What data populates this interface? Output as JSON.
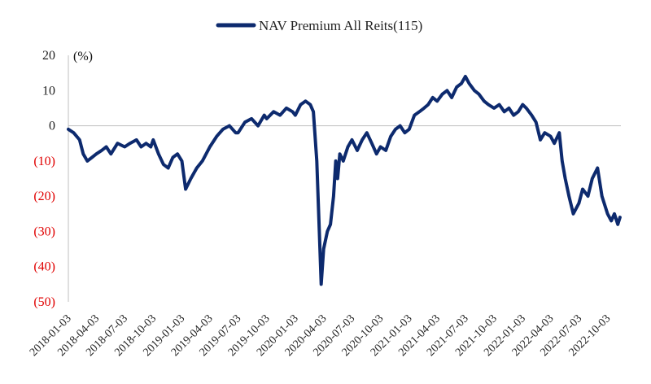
{
  "chart_data": {
    "type": "line",
    "title": "",
    "xlabel": "",
    "ylabel": "(%)",
    "ylim": [
      -50,
      20
    ],
    "yticks": [
      20,
      10,
      0,
      -10,
      -20,
      -30,
      -40,
      -50
    ],
    "ytick_labels": [
      "20",
      "10",
      "0",
      "(10)",
      "(20)",
      "(30)",
      "(40)",
      "(50)"
    ],
    "negative_tick_color": "#e00000",
    "xlim": [
      "2018-01-03",
      "2022-11-15"
    ],
    "xtick_labels": [
      "2018-01-03",
      "2018-04-03",
      "2018-07-03",
      "2018-10-03",
      "2019-01-03",
      "2019-04-03",
      "2019-07-03",
      "2019-10-03",
      "2020-01-03",
      "2020-04-03",
      "2020-07-03",
      "2020-10-03",
      "2021-01-03",
      "2021-04-03",
      "2021-07-03",
      "2021-10-03",
      "2022-01-03",
      "2022-04-03",
      "2022-07-03",
      "2022-10-03"
    ],
    "legend": {
      "position": "top-center",
      "entries": [
        "NAV Premium All Reits(115)"
      ]
    },
    "grid": false,
    "series": [
      {
        "name": "NAV Premium All Reits(115)",
        "color": "#0d2a6e",
        "x": [
          "2018-01-03",
          "2018-01-20",
          "2018-02-08",
          "2018-02-20",
          "2018-03-05",
          "2018-03-20",
          "2018-04-03",
          "2018-04-20",
          "2018-05-05",
          "2018-05-20",
          "2018-06-10",
          "2018-07-03",
          "2018-07-20",
          "2018-08-10",
          "2018-08-25",
          "2018-09-10",
          "2018-09-25",
          "2018-10-03",
          "2018-10-20",
          "2018-11-05",
          "2018-11-20",
          "2018-12-05",
          "2018-12-20",
          "2019-01-03",
          "2019-01-15",
          "2019-02-01",
          "2019-02-20",
          "2019-03-10",
          "2019-04-03",
          "2019-04-25",
          "2019-05-15",
          "2019-06-05",
          "2019-06-25",
          "2019-07-03",
          "2019-07-25",
          "2019-08-15",
          "2019-09-05",
          "2019-09-25",
          "2019-10-03",
          "2019-10-25",
          "2019-11-15",
          "2019-12-05",
          "2019-12-25",
          "2020-01-03",
          "2020-01-20",
          "2020-02-05",
          "2020-02-20",
          "2020-03-01",
          "2020-03-12",
          "2020-03-20",
          "2020-03-26",
          "2020-04-03",
          "2020-04-15",
          "2020-04-25",
          "2020-05-05",
          "2020-05-12",
          "2020-05-18",
          "2020-05-25",
          "2020-06-05",
          "2020-06-20",
          "2020-07-03",
          "2020-07-20",
          "2020-08-05",
          "2020-08-20",
          "2020-09-05",
          "2020-09-20",
          "2020-10-03",
          "2020-10-20",
          "2020-11-05",
          "2020-11-20",
          "2020-12-05",
          "2020-12-20",
          "2021-01-03",
          "2021-01-20",
          "2021-02-05",
          "2021-02-20",
          "2021-03-05",
          "2021-03-20",
          "2021-04-03",
          "2021-04-20",
          "2021-05-05",
          "2021-05-20",
          "2021-06-05",
          "2021-06-20",
          "2021-07-03",
          "2021-07-15",
          "2021-08-01",
          "2021-08-15",
          "2021-09-01",
          "2021-09-15",
          "2021-10-03",
          "2021-10-20",
          "2021-11-05",
          "2021-11-20",
          "2021-12-05",
          "2021-12-20",
          "2022-01-03",
          "2022-01-15",
          "2022-02-01",
          "2022-02-15",
          "2022-03-01",
          "2022-03-15",
          "2022-04-03",
          "2022-04-15",
          "2022-05-01",
          "2022-05-10",
          "2022-05-20",
          "2022-06-01",
          "2022-06-15",
          "2022-07-03",
          "2022-07-15",
          "2022-08-01",
          "2022-08-15",
          "2022-09-01",
          "2022-09-15",
          "2022-10-03",
          "2022-10-15",
          "2022-10-25",
          "2022-11-05",
          "2022-11-12"
        ],
        "values": [
          -1,
          -2,
          -4,
          -8,
          -10,
          -9,
          -8,
          -7,
          -6,
          -8,
          -5,
          -6,
          -5,
          -4,
          -6,
          -5,
          -6,
          -4,
          -8,
          -11,
          -12,
          -9,
          -8,
          -10,
          -18,
          -15,
          -12,
          -10,
          -6,
          -3,
          -1,
          0,
          -2,
          -2,
          1,
          2,
          0,
          3,
          2,
          4,
          3,
          5,
          4,
          3,
          6,
          7,
          6,
          4,
          -10,
          -30,
          -45,
          -35,
          -30,
          -28,
          -20,
          -10,
          -15,
          -8,
          -10,
          -6,
          -4,
          -7,
          -4,
          -2,
          -5,
          -8,
          -6,
          -7,
          -3,
          -1,
          0,
          -2,
          -1,
          3,
          4,
          5,
          6,
          8,
          7,
          9,
          10,
          8,
          11,
          12,
          14,
          12,
          10,
          9,
          7,
          6,
          5,
          6,
          4,
          5,
          3,
          4,
          6,
          5,
          3,
          1,
          -4,
          -2,
          -3,
          -5,
          -2,
          -10,
          -15,
          -20,
          -25,
          -22,
          -18,
          -20,
          -15,
          -12,
          -20,
          -25,
          -27,
          -25,
          -28,
          -26
        ]
      }
    ]
  }
}
